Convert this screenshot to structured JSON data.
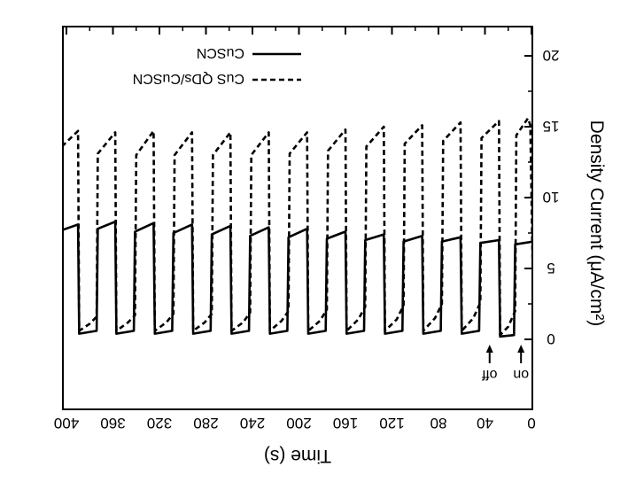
{
  "chart_data": {
    "type": "line",
    "title": "",
    "xlabel": "Time (s)",
    "ylabel": "Density Current (μA/cm²)",
    "x_reversed": true,
    "xlim": [
      0,
      400
    ],
    "ylim": [
      -3,
      22
    ],
    "xticks": [
      0,
      40,
      80,
      120,
      160,
      200,
      240,
      280,
      320,
      360,
      400
    ],
    "yticks": [
      0,
      5,
      10,
      15,
      20
    ],
    "grid": false,
    "legend_position": "top",
    "series": [
      {
        "name": "CuSCN",
        "style": "solid",
        "points": [
          [
            404,
            7.7
          ],
          [
            390,
            8.1
          ],
          [
            389,
            0.4
          ],
          [
            374,
            0.6
          ],
          [
            373,
            7.8
          ],
          [
            358,
            8.3
          ],
          [
            357,
            0.4
          ],
          [
            342,
            0.6
          ],
          [
            341,
            7.6
          ],
          [
            325,
            8.2
          ],
          [
            324,
            0.4
          ],
          [
            309,
            0.6
          ],
          [
            308,
            7.5
          ],
          [
            292,
            8.1
          ],
          [
            291,
            0.4
          ],
          [
            276,
            0.6
          ],
          [
            275,
            7.4
          ],
          [
            259,
            8.0
          ],
          [
            258,
            0.4
          ],
          [
            243,
            0.6
          ],
          [
            242,
            7.3
          ],
          [
            226,
            7.9
          ],
          [
            225,
            0.4
          ],
          [
            210,
            0.6
          ],
          [
            209,
            7.2
          ],
          [
            193,
            7.8
          ],
          [
            192,
            0.4
          ],
          [
            177,
            0.6
          ],
          [
            176,
            7.1
          ],
          [
            160,
            7.6
          ],
          [
            159,
            0.4
          ],
          [
            144,
            0.6
          ],
          [
            143,
            7.0
          ],
          [
            127,
            7.4
          ],
          [
            126,
            0.4
          ],
          [
            111,
            0.6
          ],
          [
            110,
            6.9
          ],
          [
            94,
            7.3
          ],
          [
            93,
            0.4
          ],
          [
            78,
            0.6
          ],
          [
            77,
            6.9
          ],
          [
            61,
            7.2
          ],
          [
            60,
            0.4
          ],
          [
            45,
            0.6
          ],
          [
            44,
            6.8
          ],
          [
            28,
            7.0
          ],
          [
            27,
            0.2
          ],
          [
            15,
            0.3
          ],
          [
            14,
            6.7
          ],
          [
            -2,
            6.9
          ],
          [
            -3,
            0.2
          ],
          [
            -7,
            0.2
          ]
        ]
      },
      {
        "name": "CuS QDs/CuSCN",
        "style": "dashed",
        "points": [
          [
            404,
            13.6
          ],
          [
            390,
            14.7
          ],
          [
            389,
            0.6
          ],
          [
            380,
            1.1
          ],
          [
            374,
            1.6
          ],
          [
            373,
            13.1
          ],
          [
            358,
            14.6
          ],
          [
            357,
            0.6
          ],
          [
            347,
            1.2
          ],
          [
            341,
            1.7
          ],
          [
            340,
            13.0
          ],
          [
            325,
            14.7
          ],
          [
            324,
            0.6
          ],
          [
            314,
            1.2
          ],
          [
            308,
            1.8
          ],
          [
            307,
            13.0
          ],
          [
            292,
            14.6
          ],
          [
            291,
            0.6
          ],
          [
            281,
            1.2
          ],
          [
            275,
            1.8
          ],
          [
            274,
            13.0
          ],
          [
            259,
            14.6
          ],
          [
            258,
            0.6
          ],
          [
            248,
            1.2
          ],
          [
            242,
            1.9
          ],
          [
            241,
            13.0
          ],
          [
            226,
            14.6
          ],
          [
            225,
            0.6
          ],
          [
            215,
            1.3
          ],
          [
            209,
            2.0
          ],
          [
            208,
            13.1
          ],
          [
            193,
            14.6
          ],
          [
            192,
            0.6
          ],
          [
            182,
            1.3
          ],
          [
            176,
            2.1
          ],
          [
            175,
            13.3
          ],
          [
            160,
            14.8
          ],
          [
            159,
            0.6
          ],
          [
            149,
            1.4
          ],
          [
            143,
            2.3
          ],
          [
            142,
            13.6
          ],
          [
            127,
            15.0
          ],
          [
            126,
            0.6
          ],
          [
            116,
            1.4
          ],
          [
            110,
            2.4
          ],
          [
            109,
            13.8
          ],
          [
            94,
            15.1
          ],
          [
            93,
            0.6
          ],
          [
            83,
            1.5
          ],
          [
            77,
            2.5
          ],
          [
            76,
            14.0
          ],
          [
            61,
            15.3
          ],
          [
            60,
            0.6
          ],
          [
            50,
            1.5
          ],
          [
            44,
            2.6
          ],
          [
            43,
            14.2
          ],
          [
            28,
            15.4
          ],
          [
            27,
            0.3
          ],
          [
            20,
            0.9
          ],
          [
            14,
            2.0
          ],
          [
            13,
            14.4
          ],
          [
            3,
            15.6
          ],
          [
            1,
            15.1
          ],
          [
            -2,
            0.2
          ],
          [
            -7,
            0.2
          ]
        ]
      }
    ],
    "annotations": [
      {
        "text": "on",
        "x": 9
      },
      {
        "text": "off",
        "x": 36
      }
    ]
  }
}
